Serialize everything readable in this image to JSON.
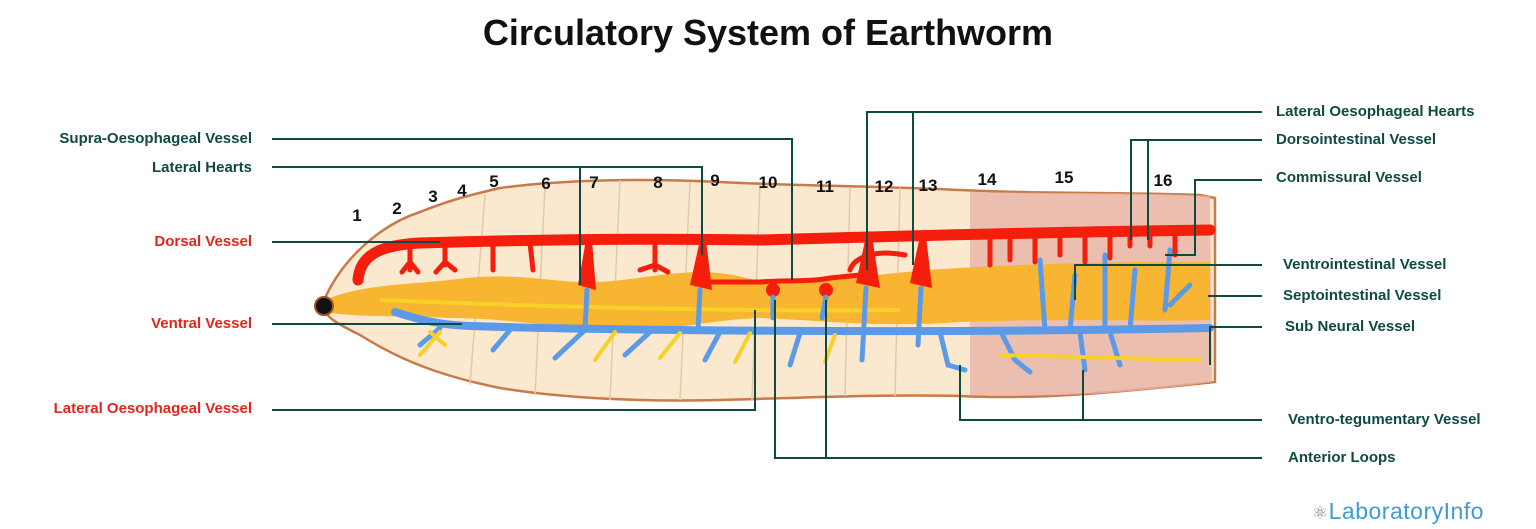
{
  "title": "Circulatory System of Earthworm",
  "segments": [
    "1",
    "2",
    "3",
    "4",
    "5",
    "6",
    "7",
    "8",
    "9",
    "10",
    "11",
    "12",
    "13",
    "14",
    "15",
    "16"
  ],
  "left_labels": {
    "supra_oesophageal_vessel": "Supra-Oesophageal Vessel",
    "lateral_hearts": "Lateral Hearts",
    "dorsal_vessel": "Dorsal Vessel",
    "ventral_vessel": "Ventral Vessel",
    "lateral_oesophageal_vessel": "Lateral Oesophageal Vessel"
  },
  "right_labels": {
    "lateral_oesophageal_hearts": "Lateral Oesophageal Hearts",
    "dorsointestinal_vessel": "Dorsointestinal Vessel",
    "commissural_vessel": "Commissural Vessel",
    "ventrointestinal_vessel": "Ventrointestinal Vessel",
    "septointestinal_vessel": "Septointestinal Vessel",
    "sub_neural_vessel": "Sub Neural Vessel",
    "ventro_tegumentary_vessel": "Ventro-tegumentary Vessel",
    "anterior_loops": "Anterior Loops"
  },
  "logo": "LaboratoryInfo",
  "colors": {
    "label_teal": "#0f4a40",
    "label_red": "#e8231c",
    "dorsal": "#f51d0b",
    "ventral": "#5b9ae8",
    "gut": "#f8b531",
    "body": "#fbe9cf",
    "clitellum": "#e8b3a6"
  }
}
